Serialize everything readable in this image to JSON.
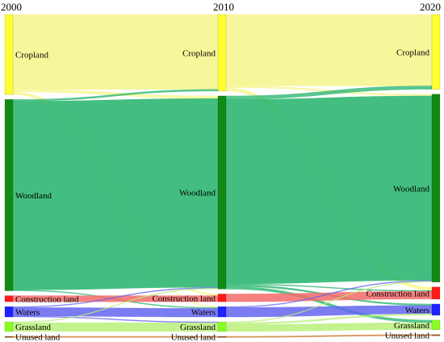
{
  "years": [
    "2000",
    "2010",
    "2020"
  ],
  "categories": [
    {
      "key": "cropland",
      "label": "Cropland",
      "color": "#ffff33"
    },
    {
      "key": "woodland",
      "label": "Woodland",
      "color": "#138a13"
    },
    {
      "key": "construction",
      "label": "Construction land",
      "color": "#ff1a1a"
    },
    {
      "key": "waters",
      "label": "Waters",
      "color": "#1e22ff"
    },
    {
      "key": "grassland",
      "label": "Grassland",
      "color": "#88ff22"
    },
    {
      "key": "unused",
      "label": "Unused land",
      "color": "#a05010"
    }
  ],
  "link_colors": {
    "cropland": "#f5f58a",
    "woodland": "#22b36a",
    "construction": "#f56a6a",
    "waters": "#6464f0",
    "grassland": "#b8f07a",
    "unused": "#d08040"
  },
  "chart_data": {
    "type": "sankey",
    "stages": [
      "2000",
      "2010",
      "2020"
    ],
    "nodes": [
      "Cropland",
      "Woodland",
      "Construction land",
      "Waters",
      "Grassland",
      "Unused land"
    ],
    "stage_values": [
      {
        "Cropland": 92,
        "Woodland": 220,
        "Construction land": 7,
        "Waters": 12,
        "Grassland": 11,
        "Unused land": 1
      },
      {
        "Cropland": 88,
        "Woodland": 222,
        "Construction land": 9,
        "Waters": 12,
        "Grassland": 11,
        "Unused land": 1
      },
      {
        "Cropland": 86,
        "Woodland": 216,
        "Construction land": 14,
        "Waters": 13,
        "Grassland": 11,
        "Unused land": 1
      }
    ],
    "transitions": [
      {
        "from": "2000",
        "to": "2010",
        "flows": [
          {
            "source": "Cropland",
            "target": "Cropland",
            "value": 86
          },
          {
            "source": "Cropland",
            "target": "Woodland",
            "value": 3
          },
          {
            "source": "Cropland",
            "target": "Construction land",
            "value": 2
          },
          {
            "source": "Cropland",
            "target": "Waters",
            "value": 1
          },
          {
            "source": "Woodland",
            "target": "Cropland",
            "value": 2
          },
          {
            "source": "Woodland",
            "target": "Woodland",
            "value": 217
          },
          {
            "source": "Woodland",
            "target": "Waters",
            "value": 1
          },
          {
            "source": "Construction land",
            "target": "Construction land",
            "value": 7
          },
          {
            "source": "Waters",
            "target": "Waters",
            "value": 10
          },
          {
            "source": "Waters",
            "target": "Woodland",
            "value": 1
          },
          {
            "source": "Waters",
            "target": "Grassland",
            "value": 1
          },
          {
            "source": "Grassland",
            "target": "Grassland",
            "value": 10
          },
          {
            "source": "Grassland",
            "target": "Woodland",
            "value": 1
          },
          {
            "source": "Unused land",
            "target": "Unused land",
            "value": 1
          }
        ]
      },
      {
        "from": "2010",
        "to": "2020",
        "flows": [
          {
            "source": "Cropland",
            "target": "Cropland",
            "value": 82
          },
          {
            "source": "Cropland",
            "target": "Woodland",
            "value": 2
          },
          {
            "source": "Cropland",
            "target": "Construction land",
            "value": 4
          },
          {
            "source": "Woodland",
            "target": "Cropland",
            "value": 4
          },
          {
            "source": "Woodland",
            "target": "Woodland",
            "value": 212
          },
          {
            "source": "Woodland",
            "target": "Construction land",
            "value": 1
          },
          {
            "source": "Woodland",
            "target": "Waters",
            "value": 2
          },
          {
            "source": "Woodland",
            "target": "Grassland",
            "value": 3
          },
          {
            "source": "Construction land",
            "target": "Construction land",
            "value": 9
          },
          {
            "source": "Waters",
            "target": "Waters",
            "value": 11
          },
          {
            "source": "Waters",
            "target": "Woodland",
            "value": 1
          },
          {
            "source": "Grassland",
            "target": "Grassland",
            "value": 8
          },
          {
            "source": "Grassland",
            "target": "Woodland",
            "value": 1
          },
          {
            "source": "Grassland",
            "target": "Waters",
            "value": 2
          },
          {
            "source": "Unused land",
            "target": "Unused land",
            "value": 1
          }
        ]
      }
    ]
  }
}
